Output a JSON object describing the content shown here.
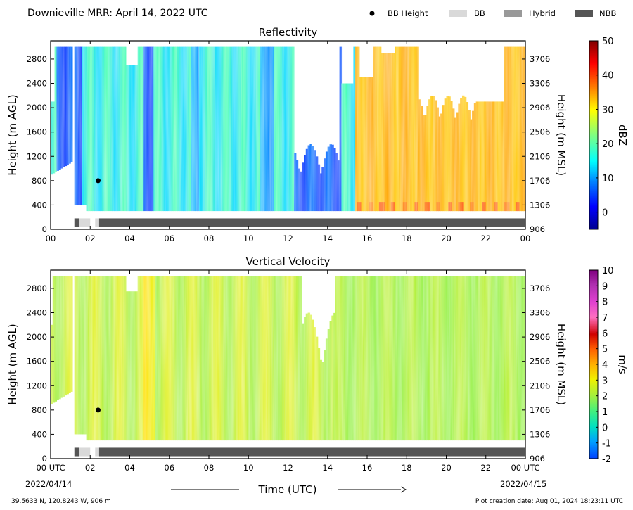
{
  "header": {
    "title": "Downieville MRR:  April 14, 2022 UTC",
    "legend": [
      {
        "label": "BB Height",
        "symbol": "dot",
        "color": "#000000"
      },
      {
        "label": "BB",
        "symbol": "box",
        "color": "#d9d9d9"
      },
      {
        "label": "Hybrid",
        "symbol": "box",
        "color": "#999999"
      },
      {
        "label": "NBB",
        "symbol": "box",
        "color": "#555555"
      }
    ]
  },
  "footer": {
    "location": "39.5633 N, 120.8243 W, 906 m",
    "creation": "Plot creation date: Aug 01, 2024 18:23:11 UTC",
    "xlabel": "Time (UTC)",
    "start_date": "2022/04/14",
    "end_date": "2022/04/15"
  },
  "chart_data": [
    {
      "type": "heatmap",
      "title": "Reflectivity",
      "ylabel": "Height (m AGL)",
      "ylabel_right": "Height (m MSL)",
      "xlim": [
        0,
        24
      ],
      "ylim": [
        0,
        3100
      ],
      "x_ticks": [
        "00",
        "02",
        "04",
        "06",
        "08",
        "10",
        "12",
        "14",
        "16",
        "18",
        "20",
        "22",
        "00"
      ],
      "y_ticks": [
        0,
        400,
        800,
        1200,
        1600,
        2000,
        2400,
        2800
      ],
      "y_ticks_right": [
        906,
        1306,
        1706,
        2106,
        2506,
        2906,
        3306,
        3706
      ],
      "colorbar": {
        "label": "dBZ",
        "min": -5,
        "max": 50,
        "ticks": [
          0,
          10,
          20,
          30,
          40,
          50
        ]
      },
      "bb_height": [
        {
          "x": 2.4,
          "y": 800
        }
      ],
      "bb_type_bar": [
        {
          "start": 1.2,
          "end": 1.45,
          "type": "NBB"
        },
        {
          "start": 1.45,
          "end": 2.0,
          "type": "BB"
        },
        {
          "start": 2.25,
          "end": 2.45,
          "type": "BB"
        },
        {
          "start": 2.45,
          "end": 24.0,
          "type": "NBB"
        }
      ]
    },
    {
      "type": "heatmap",
      "title": "Vertical Velocity",
      "ylabel": "Height (m AGL)",
      "ylabel_right": "Height (m MSL)",
      "xlim": [
        0,
        24
      ],
      "ylim": [
        0,
        3100
      ],
      "x_ticks": [
        "00 UTC",
        "02",
        "04",
        "06",
        "08",
        "10",
        "12",
        "14",
        "16",
        "18",
        "20",
        "22",
        "00 UTC"
      ],
      "y_ticks": [
        0,
        400,
        800,
        1200,
        1600,
        2000,
        2400,
        2800
      ],
      "y_ticks_right": [
        906,
        1306,
        1706,
        2106,
        2506,
        2906,
        3306,
        3706
      ],
      "colorbar": {
        "label": "m/s",
        "min": -2,
        "max": 10,
        "ticks": [
          -2,
          -1,
          0,
          1,
          2,
          3,
          4,
          5,
          6,
          7,
          8,
          9,
          10
        ]
      },
      "bb_height": [
        {
          "x": 2.4,
          "y": 800
        }
      ],
      "bb_type_bar": [
        {
          "start": 1.2,
          "end": 1.45,
          "type": "NBB"
        },
        {
          "start": 1.45,
          "end": 2.0,
          "type": "BB"
        },
        {
          "start": 2.25,
          "end": 2.45,
          "type": "BB"
        },
        {
          "start": 2.45,
          "end": 24.0,
          "type": "NBB"
        }
      ]
    }
  ]
}
